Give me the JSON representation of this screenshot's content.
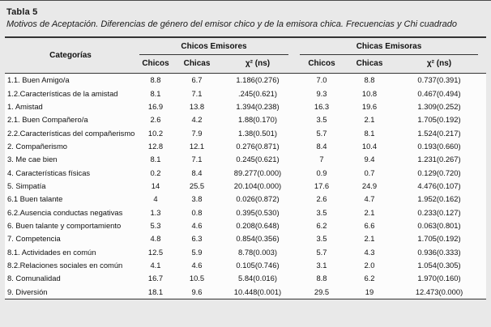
{
  "table": {
    "label": "Tabla 5",
    "caption": "Motivos de Aceptación. Diferencias de género del emisor chico y de la emisora chica. Frecuencias y Chi cuadrado",
    "group_headers": [
      "Chicos Emisores",
      "Chicas Emisoras"
    ],
    "col_headers": {
      "category": "Categorías",
      "chicos": "Chicos",
      "chicas": "Chicas",
      "chi": "χ² (ns)"
    },
    "rows": [
      {
        "category": "1.1. Buen Amigo/a",
        "values": [
          "8.8",
          "6.7",
          "1.186(0.276)",
          "7.0",
          "8.8",
          "0.737(0.391)"
        ]
      },
      {
        "category": "1.2.Características de la amistad",
        "values": [
          "8.1",
          "7.1",
          ".245(0.621)",
          "9.3",
          "10.8",
          "0.467(0.494)"
        ]
      },
      {
        "category": "1. Amistad",
        "values": [
          "16.9",
          "13.8",
          "1.394(0.238)",
          "16.3",
          "19.6",
          "1.309(0.252)"
        ]
      },
      {
        "category": "2.1. Buen Compañero/a",
        "values": [
          "2.6",
          "4.2",
          "1.88(0.170)",
          "3.5",
          "2.1",
          "1.705(0.192)"
        ]
      },
      {
        "category": "2.2.Características del compañerismo",
        "values": [
          "10.2",
          "7.9",
          "1.38(0.501)",
          "5.7",
          "8.1",
          "1.524(0.217)"
        ]
      },
      {
        "category": "2. Compañerismo",
        "values": [
          "12.8",
          "12.1",
          "0.276(0.871)",
          "8.4",
          "10.4",
          "0.193(0.660)"
        ]
      },
      {
        "category": "3. Me cae bien",
        "values": [
          "8.1",
          "7.1",
          "0.245(0.621)",
          "7",
          "9.4",
          "1.231(0.267)"
        ]
      },
      {
        "category": "4. Características físicas",
        "values": [
          "0.2",
          "8.4",
          "89.277(0.000)",
          "0.9",
          "0.7",
          "0.129(0.720)"
        ]
      },
      {
        "category": "5. Simpatía",
        "values": [
          "14",
          "25.5",
          "20.104(0.000)",
          "17.6",
          "24.9",
          "4.476(0.107)"
        ]
      },
      {
        "category": "6.1 Buen talante",
        "values": [
          "4",
          "3.8",
          "0.026(0.872)",
          "2.6",
          "4.7",
          "1.952(0.162)"
        ]
      },
      {
        "category": "6.2.Ausencia conductas negativas",
        "values": [
          "1.3",
          "0.8",
          "0.395(0.530)",
          "3.5",
          "2.1",
          "0.233(0.127)"
        ]
      },
      {
        "category": "6. Buen talante y comportamiento",
        "values": [
          "5.3",
          "4.6",
          "0.208(0.648)",
          "6.2",
          "6.6",
          "0.063(0.801)"
        ]
      },
      {
        "category": "7. Competencia",
        "values": [
          "4.8",
          "6.3",
          "0.854(0.356)",
          "3.5",
          "2.1",
          "1.705(0.192)"
        ]
      },
      {
        "category": "8.1. Actividades en común",
        "values": [
          "12.5",
          "5.9",
          "8.78(0.003)",
          "5.7",
          "4.3",
          "0.936(0.333)"
        ]
      },
      {
        "category": "8.2.Relaciones sociales en común",
        "values": [
          "4.1",
          "4.6",
          "0.105(0.746)",
          "3.1",
          "2.0",
          "1.054(0.305)"
        ]
      },
      {
        "category": "8. Comunalidad",
        "values": [
          "16.7",
          "10.5",
          "5.84(0.016)",
          "8.8",
          "6.2",
          "1.970(0.160)"
        ]
      },
      {
        "category": "9. Diversión",
        "values": [
          "18.1",
          "9.6",
          "10.448(0.001)",
          "29.5",
          "19",
          "12.473(0.000)"
        ]
      }
    ]
  }
}
